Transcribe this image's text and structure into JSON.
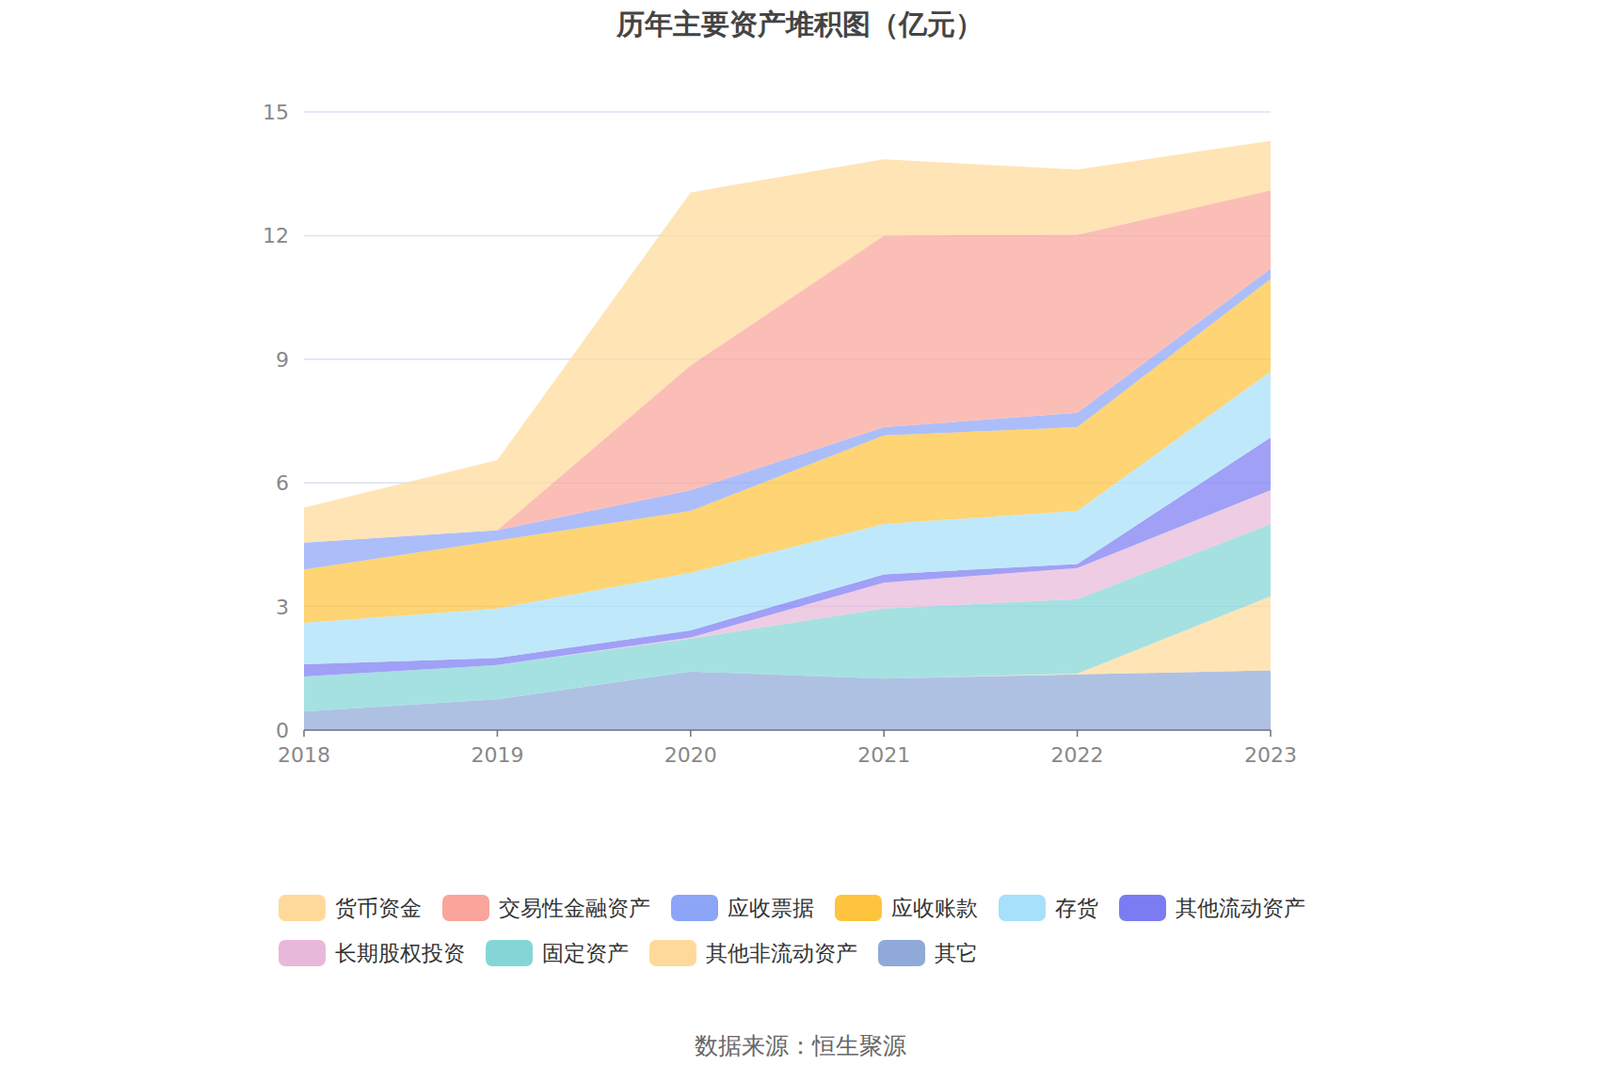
{
  "chart_data": {
    "type": "area",
    "stacked": true,
    "title": "历年主要资产堆积图（亿元）",
    "source": "数据来源：恒生聚源",
    "categories": [
      "2018",
      "2019",
      "2020",
      "2021",
      "2022",
      "2023"
    ],
    "ylim": [
      0,
      15
    ],
    "yticks": [
      0,
      3,
      6,
      9,
      12,
      15
    ],
    "grid": true,
    "legend": "bottom",
    "series": [
      {
        "name": "货币资金",
        "color": "#ffd99a",
        "values": [
          0.85,
          1.7,
          4.2,
          1.85,
          1.58,
          1.2
        ]
      },
      {
        "name": "交易性金融资产",
        "color": "#f9a59b",
        "values": [
          0,
          0,
          3.03,
          4.65,
          4.32,
          1.9
        ]
      },
      {
        "name": "应收票据",
        "color": "#8ca5f7",
        "values": [
          0.65,
          0.25,
          0.5,
          0.2,
          0.35,
          0.25
        ]
      },
      {
        "name": "应收账款",
        "color": "#fec43e",
        "values": [
          1.3,
          1.65,
          1.5,
          2.15,
          2.03,
          2.25
        ]
      },
      {
        "name": "存货",
        "color": "#a6e0fa",
        "values": [
          1.0,
          1.2,
          1.4,
          1.22,
          1.29,
          1.6
        ]
      },
      {
        "name": "其他流动资产",
        "color": "#7c7cf2",
        "values": [
          0.3,
          0.17,
          0.17,
          0.2,
          0.1,
          1.28
        ]
      },
      {
        "name": "长期股权投资",
        "color": "#e8b8da",
        "values": [
          0,
          0,
          0.03,
          0.63,
          0.75,
          0.82
        ]
      },
      {
        "name": "固定资产",
        "color": "#84d6d6",
        "values": [
          0.85,
          0.83,
          0.8,
          1.7,
          1.81,
          1.75
        ]
      },
      {
        "name": "其他非流动资产",
        "color": "#ffd99a",
        "values": [
          0,
          0,
          0,
          0,
          0.02,
          1.8
        ]
      },
      {
        "name": "其它",
        "color": "#8fa9d8",
        "values": [
          0.45,
          0.75,
          1.42,
          1.25,
          1.35,
          1.45
        ]
      }
    ]
  }
}
